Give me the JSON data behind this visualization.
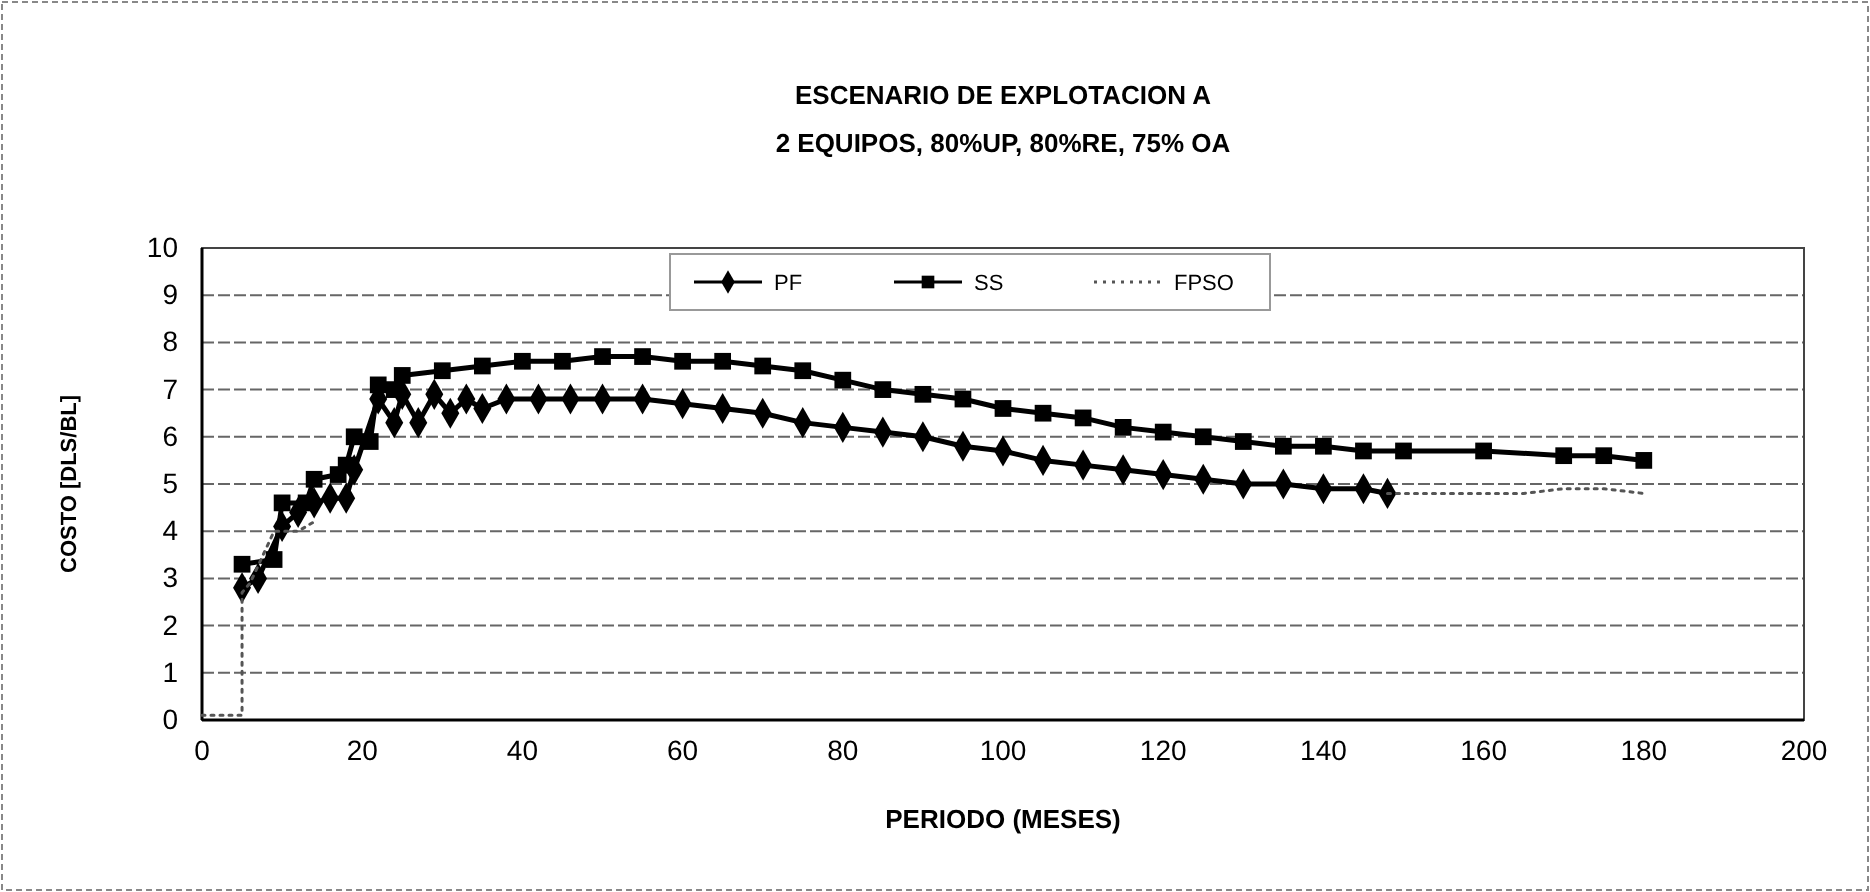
{
  "chart_data": {
    "type": "line",
    "title": "ESCENARIO DE EXPLOTACION A",
    "subtitle": "2 EQUIPOS, 80%UP, 80%RE, 75% OA",
    "xlabel": "PERIODO (MESES)",
    "ylabel": "COSTO [DLS/BL]",
    "xlim": [
      0,
      200
    ],
    "xticks": [
      0,
      20,
      40,
      60,
      80,
      100,
      120,
      140,
      160,
      180,
      200
    ],
    "ylim": [
      0,
      10
    ],
    "yticks": [
      0,
      1,
      2,
      3,
      4,
      5,
      6,
      7,
      8,
      9,
      10
    ],
    "grid": "y",
    "legend": "top",
    "series": [
      {
        "name": "PF",
        "color": "#000000",
        "marker": "diamond",
        "line_style": "solid",
        "x": [
          5,
          7,
          10,
          12,
          14,
          16,
          18,
          19,
          22,
          24,
          25,
          27,
          29,
          31,
          33,
          35,
          38,
          42,
          46,
          50,
          55,
          60,
          65,
          70,
          75,
          80,
          85,
          90,
          95,
          100,
          105,
          110,
          115,
          120,
          125,
          130,
          135,
          140,
          145,
          148
        ],
        "values": [
          2.8,
          3.0,
          4.1,
          4.4,
          4.6,
          4.7,
          4.7,
          5.3,
          6.8,
          6.3,
          6.9,
          6.3,
          6.9,
          6.5,
          6.8,
          6.6,
          6.8,
          6.8,
          6.8,
          6.8,
          6.8,
          6.7,
          6.6,
          6.5,
          6.3,
          6.2,
          6.1,
          6.0,
          5.8,
          5.7,
          5.5,
          5.4,
          5.3,
          5.2,
          5.1,
          5.0,
          5.0,
          4.9,
          4.9,
          4.8
        ]
      },
      {
        "name": "SS",
        "color": "#000000",
        "marker": "square",
        "line_style": "solid",
        "x": [
          5,
          9,
          10,
          13,
          14,
          17,
          18,
          19,
          21,
          22,
          24,
          25,
          30,
          35,
          40,
          45,
          50,
          55,
          60,
          65,
          70,
          75,
          80,
          85,
          90,
          95,
          100,
          105,
          110,
          115,
          120,
          125,
          130,
          135,
          140,
          145,
          150,
          160,
          170,
          175,
          180
        ],
        "values": [
          3.3,
          3.4,
          4.6,
          4.6,
          5.1,
          5.2,
          5.4,
          6.0,
          5.9,
          7.1,
          7.0,
          7.3,
          7.4,
          7.5,
          7.6,
          7.6,
          7.7,
          7.7,
          7.6,
          7.6,
          7.5,
          7.4,
          7.2,
          7.0,
          6.9,
          6.8,
          6.6,
          6.5,
          6.4,
          6.2,
          6.1,
          6.0,
          5.9,
          5.8,
          5.8,
          5.7,
          5.7,
          5.7,
          5.6,
          5.6,
          5.5
        ]
      },
      {
        "name": "FPSO",
        "color": "#555555",
        "marker": "none",
        "line_style": "dotted",
        "x": [
          0,
          5,
          5,
          6,
          9,
          12,
          14,
          15,
          148,
          155,
          160,
          165,
          170,
          175,
          180
        ],
        "values": [
          0.1,
          0.1,
          2.7,
          2.9,
          4.0,
          4.0,
          4.2,
          null,
          4.8,
          4.8,
          4.8,
          4.8,
          4.9,
          4.9,
          4.8
        ]
      }
    ]
  }
}
